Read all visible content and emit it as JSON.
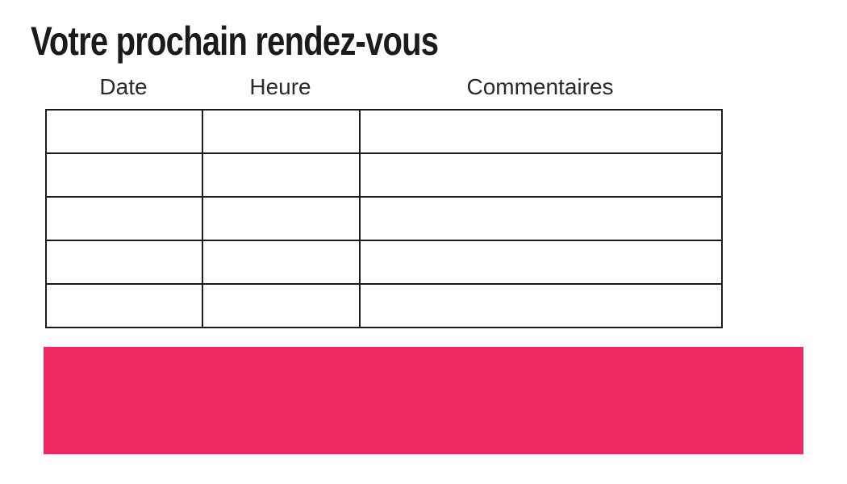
{
  "page": {
    "title": "Votre prochain rendez-vous"
  },
  "table": {
    "headers": [
      "Date",
      "Heure",
      "Commentaires"
    ],
    "rows": [
      [
        "",
        "",
        ""
      ],
      [
        "",
        "",
        ""
      ],
      [
        "",
        "",
        ""
      ],
      [
        "",
        "",
        ""
      ],
      [
        "",
        "",
        ""
      ]
    ]
  },
  "colors": {
    "accent_pink": "#ED2A62",
    "text": "#1B1B1B",
    "table_border": "#1C1C1C"
  }
}
